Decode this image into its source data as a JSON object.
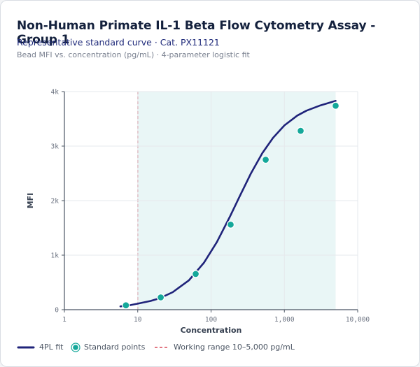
{
  "title": "Non-Human Primate IL-1 Beta Flow Cytometry Assay - Group 1",
  "subtitle": "Representative standard curve · Cat. PX11121",
  "caption": "Bead MFI vs. concentration (pg/mL) · 4-parameter logistic fit",
  "colors": {
    "curve": "#1f237a",
    "points": "#14a89a",
    "range_line": "#d94a5a",
    "range_fill": "#e9f6f6",
    "grid": "#e6e8ec",
    "axis": "#4b5563"
  },
  "legend": {
    "curve_label": "4PL fit",
    "points_label": "Standard points",
    "range_label": "Working range 10–5,000 pg/mL"
  },
  "chart_data": {
    "type": "scatter",
    "xlabel": "Concentration",
    "ylabel": "MFI",
    "x_scale": "log",
    "xlim": [
      1,
      10000
    ],
    "ylim": [
      0,
      4000
    ],
    "x_ticks": [
      1,
      10,
      100,
      1000,
      10000
    ],
    "x_tick_labels": [
      "1",
      "10",
      "100",
      "1,000",
      "10,000"
    ],
    "y_ticks": [
      0,
      1000,
      2000,
      3000,
      4000
    ],
    "y_tick_labels": [
      "0",
      "1k",
      "2k",
      "3k",
      "4k"
    ],
    "grid": true,
    "legend_position": "bottom",
    "working_range": [
      10,
      5000
    ],
    "series": [
      {
        "name": "Standard points",
        "kind": "points",
        "x": [
          6.9,
          20.6,
          61.7,
          185,
          556,
          1667,
          5000
        ],
        "y": [
          80,
          225,
          655,
          1560,
          2750,
          3280,
          3740
        ]
      },
      {
        "name": "4PL fit",
        "kind": "line",
        "x": [
          5.8,
          8,
          10,
          15,
          20,
          30,
          50,
          80,
          120,
          180,
          250,
          350,
          500,
          700,
          1000,
          1500,
          2000,
          3000,
          5000
        ],
        "y": [
          60,
          85,
          110,
          160,
          210,
          320,
          540,
          860,
          1240,
          1700,
          2100,
          2500,
          2870,
          3150,
          3380,
          3560,
          3650,
          3740,
          3830
        ]
      }
    ]
  }
}
